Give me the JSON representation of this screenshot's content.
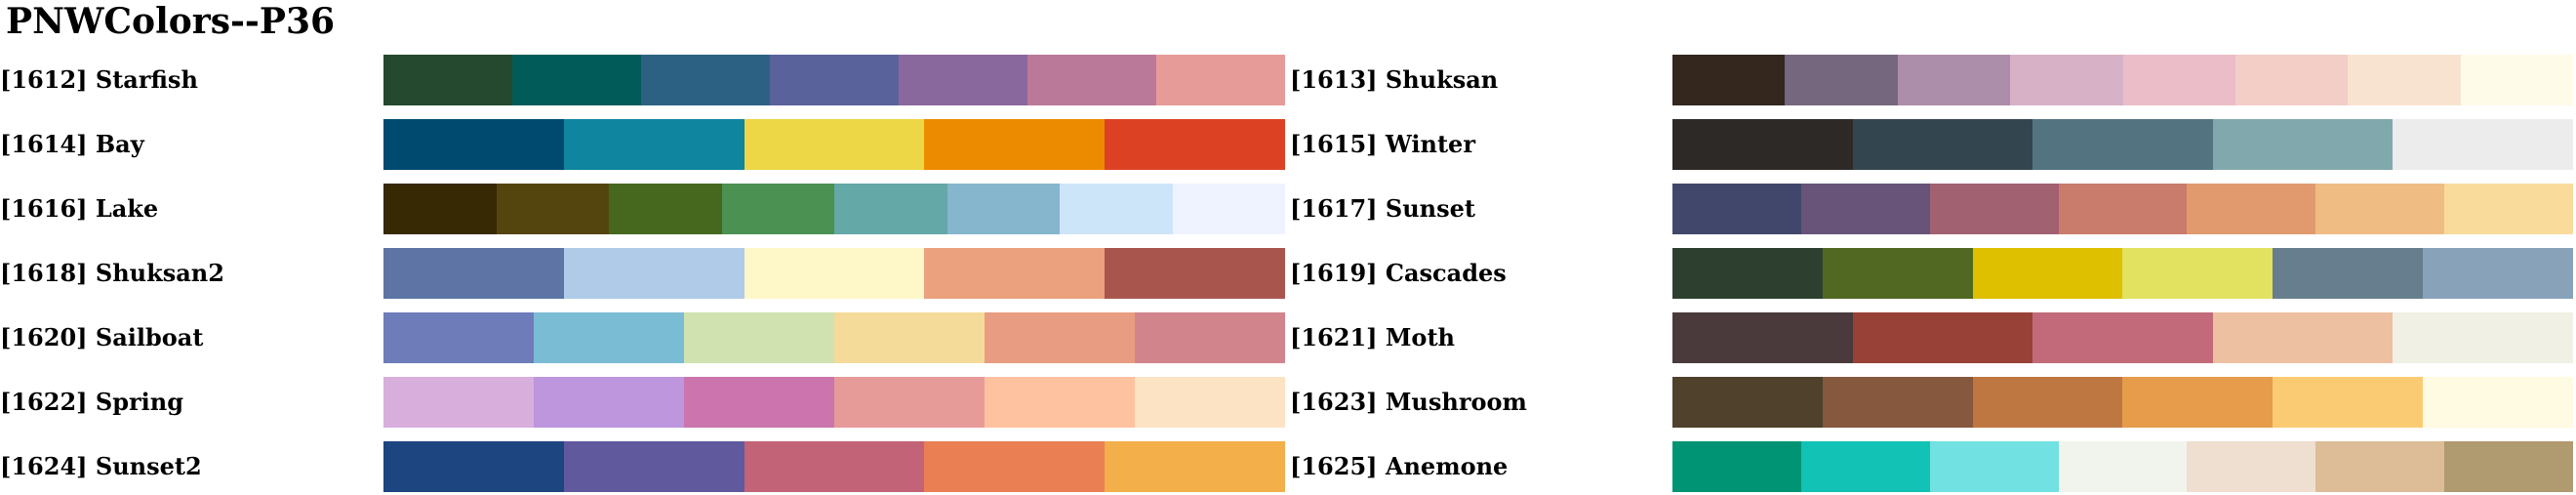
{
  "title": "PNWColors--P36",
  "palettes": [
    {
      "label": "[1612] Starfish",
      "colors": [
        "#24492e",
        "#015b58",
        "#2c6184",
        "#59629b",
        "#89689d",
        "#ba7999",
        "#e69b99"
      ]
    },
    {
      "label": "[1613] Shuksan",
      "colors": [
        "#33271e",
        "#74677e",
        "#ac8eab",
        "#d7b1c5",
        "#ebbdc8",
        "#f2cec7",
        "#f8e3d1",
        "#fefbe9"
      ]
    },
    {
      "label": "[1614] Bay",
      "colors": [
        "#00496f",
        "#0f85a0",
        "#edd746",
        "#ed8b00",
        "#dd4124"
      ]
    },
    {
      "label": "[1615] Winter",
      "colors": [
        "#2d2926",
        "#33454e",
        "#537380",
        "#81a9ad",
        "#ececec"
      ]
    },
    {
      "label": "[1616] Lake",
      "colors": [
        "#362904",
        "#54450f",
        "#45681e",
        "#4a9152",
        "#64a8a8",
        "#85b6ce",
        "#cde5f9",
        "#eef3ff"
      ]
    },
    {
      "label": "[1617] Sunset",
      "colors": [
        "#41476b",
        "#675478",
        "#a16170",
        "#c97b6c",
        "#e09a6e",
        "#efbd84",
        "#f9dc9c"
      ]
    },
    {
      "label": "[1618] Shuksan2",
      "colors": [
        "#5d74a5",
        "#b0cbe7",
        "#fef7c7",
        "#eba07e",
        "#a8554e"
      ]
    },
    {
      "label": "[1619] Cascades",
      "colors": [
        "#2d4030",
        "#516823",
        "#dec000",
        "#e2e260",
        "#677e8e",
        "#88a2b9"
      ]
    },
    {
      "label": "[1620] Sailboat",
      "colors": [
        "#6e7cb9",
        "#7bbcd5",
        "#d0e2af",
        "#f5db99",
        "#e89c81",
        "#d2848d"
      ]
    },
    {
      "label": "[1621] Moth",
      "colors": [
        "#4a3a3b",
        "#984136",
        "#c26a7a",
        "#ecc0a1",
        "#f0f0e4"
      ]
    },
    {
      "label": "[1622] Spring",
      "colors": [
        "#d8aedd",
        "#bd96dd",
        "#cb74ad",
        "#e69b99",
        "#ffc2a1",
        "#fbe3c4"
      ]
    },
    {
      "label": "[1623] Mushroom",
      "colors": [
        "#4f412b",
        "#86583e",
        "#bf7741",
        "#e69c4b",
        "#fbcb73",
        "#fffae2"
      ]
    },
    {
      "label": "[1624] Sunset2",
      "colors": [
        "#1d457f",
        "#61599d",
        "#c36377",
        "#eb7f54",
        "#f2af4a"
      ]
    },
    {
      "label": "[1625] Anemone",
      "colors": [
        "#009474",
        "#11c2b5",
        "#72e1e1",
        "#f1f4ec",
        "#eedfd0",
        "#dcbd97",
        "#b09a6f"
      ]
    }
  ]
}
